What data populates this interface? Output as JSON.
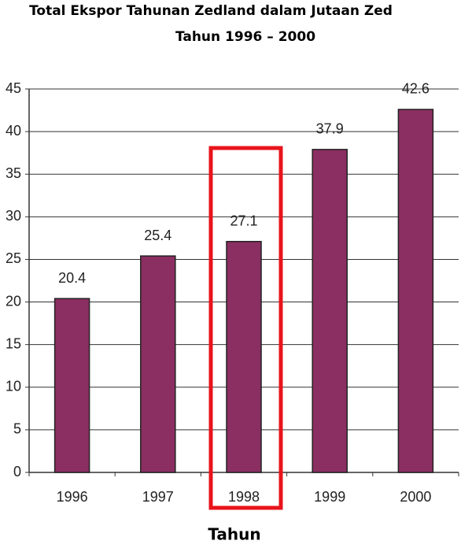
{
  "chart_data": {
    "type": "bar",
    "title": "Total Ekspor Tahunan Zedland dalam Jutaan Zed",
    "subtitle": "Tahun 1996 – 2000",
    "x_label": "Tahun",
    "categories": [
      "1996",
      "1997",
      "1998",
      "1999",
      "2000"
    ],
    "values": [
      20.4,
      25.4,
      27.1,
      37.9,
      42.6
    ],
    "color": "#8b2f62",
    "ylim": [
      0,
      45
    ],
    "yticks": [
      0,
      5,
      10,
      15,
      20,
      25,
      30,
      35,
      40,
      45
    ],
    "grid": true
  }
}
